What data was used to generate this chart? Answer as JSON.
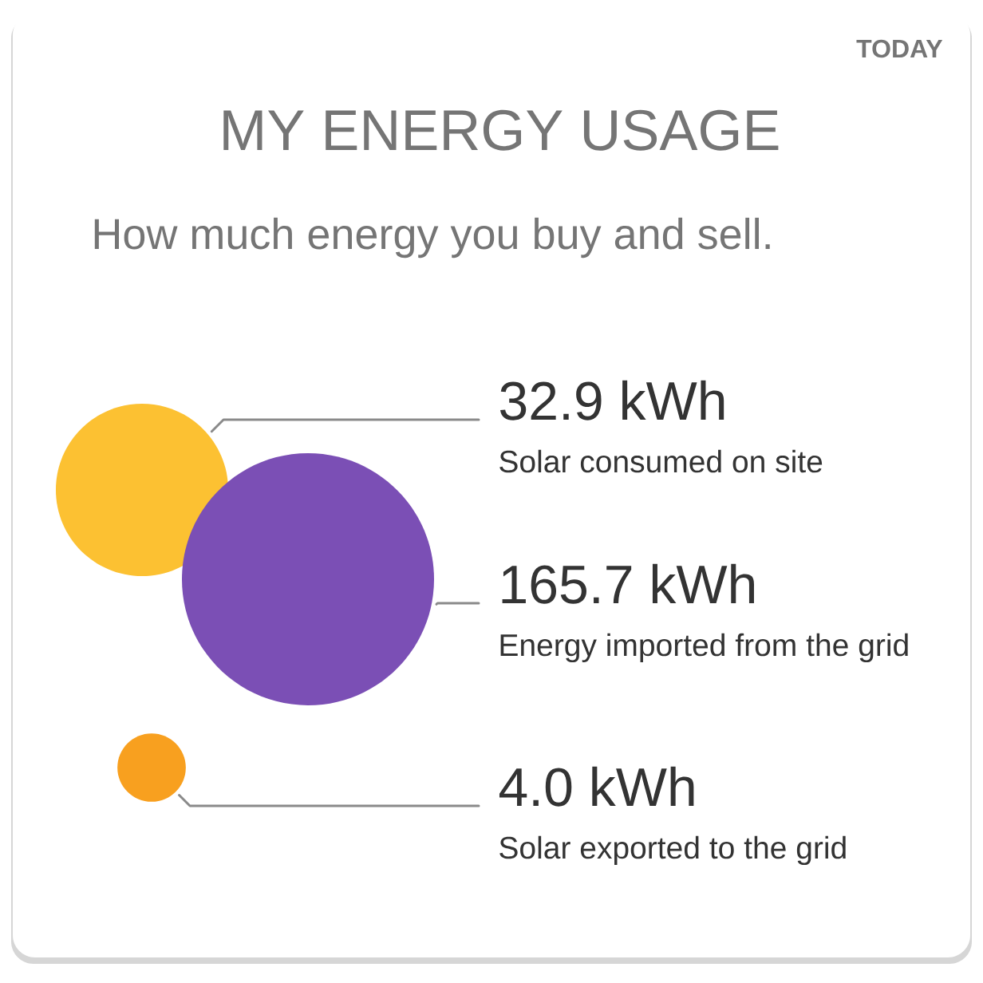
{
  "chart_data": {
    "type": "other",
    "title": "MY ENERGY USAGE",
    "subtitle": "How much energy you buy and sell.",
    "annotations": [
      "TODAY"
    ],
    "categories": [
      "Solar consumed on site",
      "Energy imported from the grid",
      "Solar exported to the grid"
    ],
    "values": [
      32.9,
      165.7,
      4.0
    ],
    "value_labels": [
      "32.9 kWh",
      "165.7 kWh",
      "4.0 kWh"
    ],
    "colors": [
      "#fcc132",
      "#7b4fb5",
      "#f8a01f"
    ]
  }
}
